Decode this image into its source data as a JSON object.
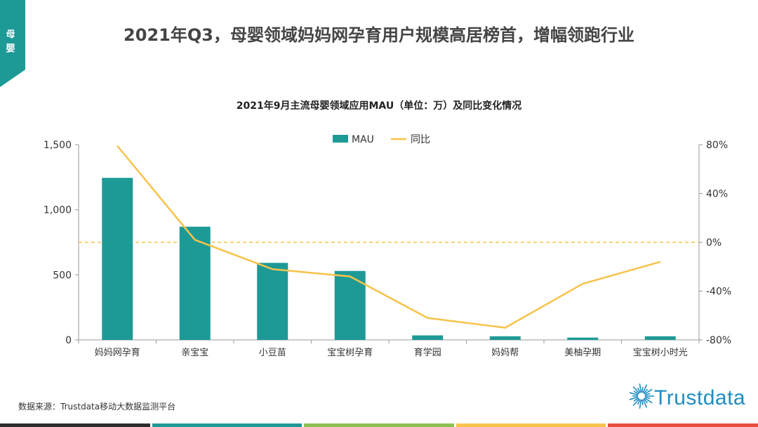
{
  "corner_tab": {
    "line1": "母",
    "line2": "婴"
  },
  "page_title": "2021年Q3，母婴领域妈妈网孕育用户规模高居榜首，增幅领跑行业",
  "chart_data": {
    "type": "bar",
    "title": "2021年9月主流母婴领域应用MAU（单位：万）及同比变化情况",
    "categories": [
      "妈妈网孕育",
      "亲宝宝",
      "小豆苗",
      "宝宝树孕育",
      "育学园",
      "妈妈帮",
      "美柚孕期",
      "宝宝树小时光"
    ],
    "series": [
      {
        "name": "MAU",
        "axis": "left",
        "kind": "bar",
        "color": "#1e9a96",
        "values": [
          1245,
          870,
          592,
          530,
          35,
          28,
          18,
          28
        ]
      },
      {
        "name": "同比",
        "axis": "right",
        "kind": "line",
        "color": "#f7c34a",
        "values": [
          79,
          2,
          -22,
          -28,
          -62,
          -70,
          -34,
          -16
        ]
      }
    ],
    "left_axis": {
      "min": 0,
      "max": 1500,
      "ticks": [
        0,
        500,
        1000,
        1500
      ],
      "tick_labels": [
        "0",
        "500",
        "1,000",
        "1,500"
      ]
    },
    "right_axis": {
      "min": -80,
      "max": 80,
      "ticks": [
        -80,
        -40,
        0,
        40,
        80
      ],
      "tick_labels": [
        "-80%",
        "-40%",
        "0%",
        "40%",
        "80%"
      ]
    },
    "reference_line": {
      "axis": "right",
      "value": 0,
      "color": "#f7c34a",
      "style": "dashed"
    },
    "legend": {
      "position": "top-center",
      "entries": [
        "MAU",
        "同比"
      ]
    }
  },
  "source": "数据来源：Trustdata移动大数据监测平台",
  "logo": {
    "text": "Trustdata",
    "color": "#1f8dc4"
  },
  "bottom_bar_colors": [
    "#2d2d2d",
    "#1e9a96",
    "#8cc152",
    "#f7c34a",
    "#e84c3d"
  ]
}
